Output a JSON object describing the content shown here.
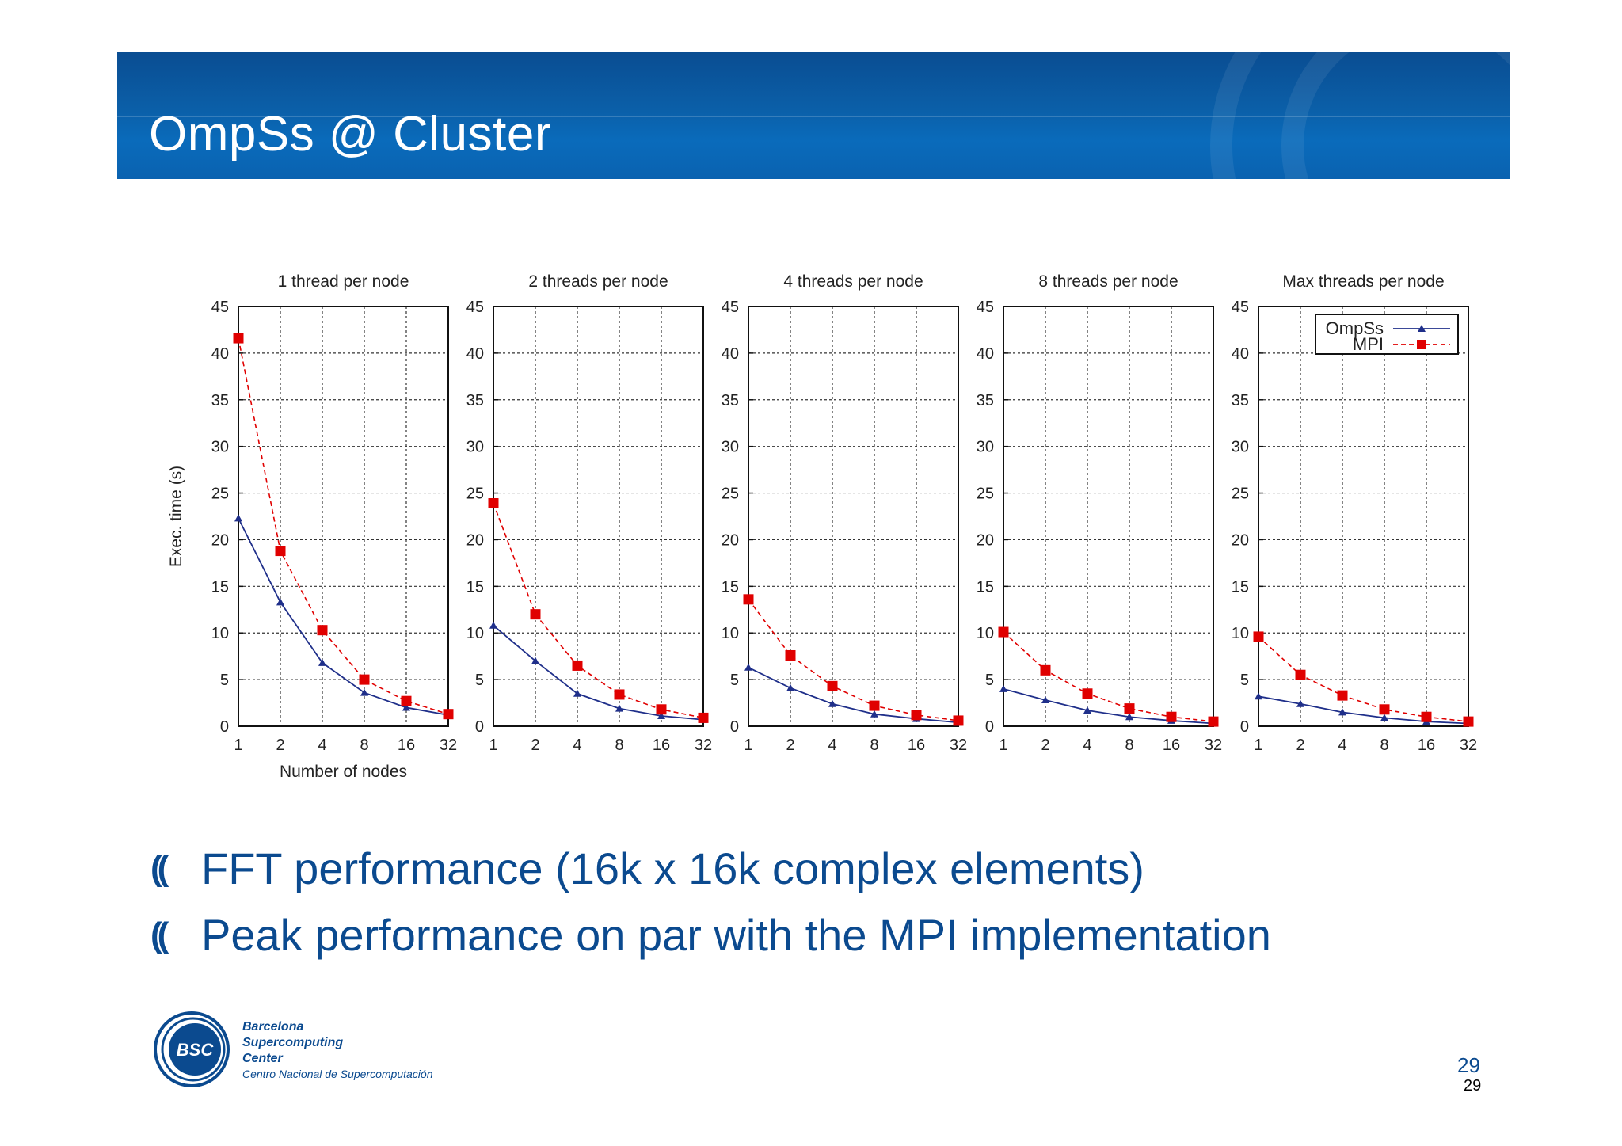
{
  "slide": {
    "title": "OmpSs @ Cluster",
    "bullets": [
      "FFT performance (16k x 16k complex elements)",
      "Peak performance on par with the MPI implementation"
    ],
    "bullet_glyph": "((",
    "logo": {
      "abbr": "BSC",
      "line1": "Barcelona",
      "line2": "Supercomputing",
      "line3": "Center",
      "line4": "Centro Nacional de Supercomputación"
    },
    "page_number": "29",
    "page_number_small": "29",
    "colors": {
      "title_bar": "#0b5fa8",
      "bullet_text": "#0b4a8f",
      "ompss": "#1f2f8a",
      "mpi": "#e00000"
    }
  },
  "chart_data": [
    {
      "type": "line",
      "title": "1 thread per node",
      "xlabel": "Number of nodes",
      "ylabel": "Exec. time (s)",
      "categories": [
        "1",
        "2",
        "4",
        "8",
        "16",
        "32"
      ],
      "ylim": [
        0,
        45
      ],
      "yticks": [
        0,
        5,
        10,
        15,
        20,
        25,
        30,
        35,
        40,
        45
      ],
      "grid": true,
      "series": [
        {
          "name": "OmpSs",
          "values": [
            22.3,
            13.3,
            6.8,
            3.6,
            2.0,
            1.2
          ]
        },
        {
          "name": "MPI",
          "values": [
            41.6,
            18.8,
            10.3,
            5.0,
            2.7,
            1.3
          ]
        }
      ]
    },
    {
      "type": "line",
      "title": "2 threads per node",
      "xlabel": "",
      "ylabel": "",
      "categories": [
        "1",
        "2",
        "4",
        "8",
        "16",
        "32"
      ],
      "ylim": [
        0,
        45
      ],
      "yticks": [
        0,
        5,
        10,
        15,
        20,
        25,
        30,
        35,
        40,
        45
      ],
      "grid": true,
      "series": [
        {
          "name": "OmpSs",
          "values": [
            10.8,
            7.0,
            3.5,
            1.9,
            1.1,
            0.7
          ]
        },
        {
          "name": "MPI",
          "values": [
            23.9,
            12.0,
            6.5,
            3.4,
            1.8,
            0.9
          ]
        }
      ]
    },
    {
      "type": "line",
      "title": "4 threads per node",
      "xlabel": "",
      "ylabel": "",
      "categories": [
        "1",
        "2",
        "4",
        "8",
        "16",
        "32"
      ],
      "ylim": [
        0,
        45
      ],
      "yticks": [
        0,
        5,
        10,
        15,
        20,
        25,
        30,
        35,
        40,
        45
      ],
      "grid": true,
      "series": [
        {
          "name": "OmpSs",
          "values": [
            6.3,
            4.1,
            2.4,
            1.3,
            0.8,
            0.4
          ]
        },
        {
          "name": "MPI",
          "values": [
            13.6,
            7.6,
            4.3,
            2.2,
            1.2,
            0.6
          ]
        }
      ]
    },
    {
      "type": "line",
      "title": "8 threads per node",
      "xlabel": "",
      "ylabel": "",
      "categories": [
        "1",
        "2",
        "4",
        "8",
        "16",
        "32"
      ],
      "ylim": [
        0,
        45
      ],
      "yticks": [
        0,
        5,
        10,
        15,
        20,
        25,
        30,
        35,
        40,
        45
      ],
      "grid": true,
      "series": [
        {
          "name": "OmpSs",
          "values": [
            4.0,
            2.8,
            1.7,
            1.0,
            0.6,
            0.3
          ]
        },
        {
          "name": "MPI",
          "values": [
            10.1,
            6.0,
            3.5,
            1.9,
            1.0,
            0.5
          ]
        }
      ]
    },
    {
      "type": "line",
      "title": "Max threads per node",
      "xlabel": "",
      "ylabel": "",
      "categories": [
        "1",
        "2",
        "4",
        "8",
        "16",
        "32"
      ],
      "ylim": [
        0,
        45
      ],
      "yticks": [
        0,
        5,
        10,
        15,
        20,
        25,
        30,
        35,
        40,
        45
      ],
      "grid": true,
      "legend": "top-right",
      "series": [
        {
          "name": "OmpSs",
          "values": [
            3.2,
            2.4,
            1.5,
            0.9,
            0.5,
            0.3
          ]
        },
        {
          "name": "MPI",
          "values": [
            9.6,
            5.5,
            3.3,
            1.8,
            1.0,
            0.5
          ]
        }
      ]
    }
  ]
}
